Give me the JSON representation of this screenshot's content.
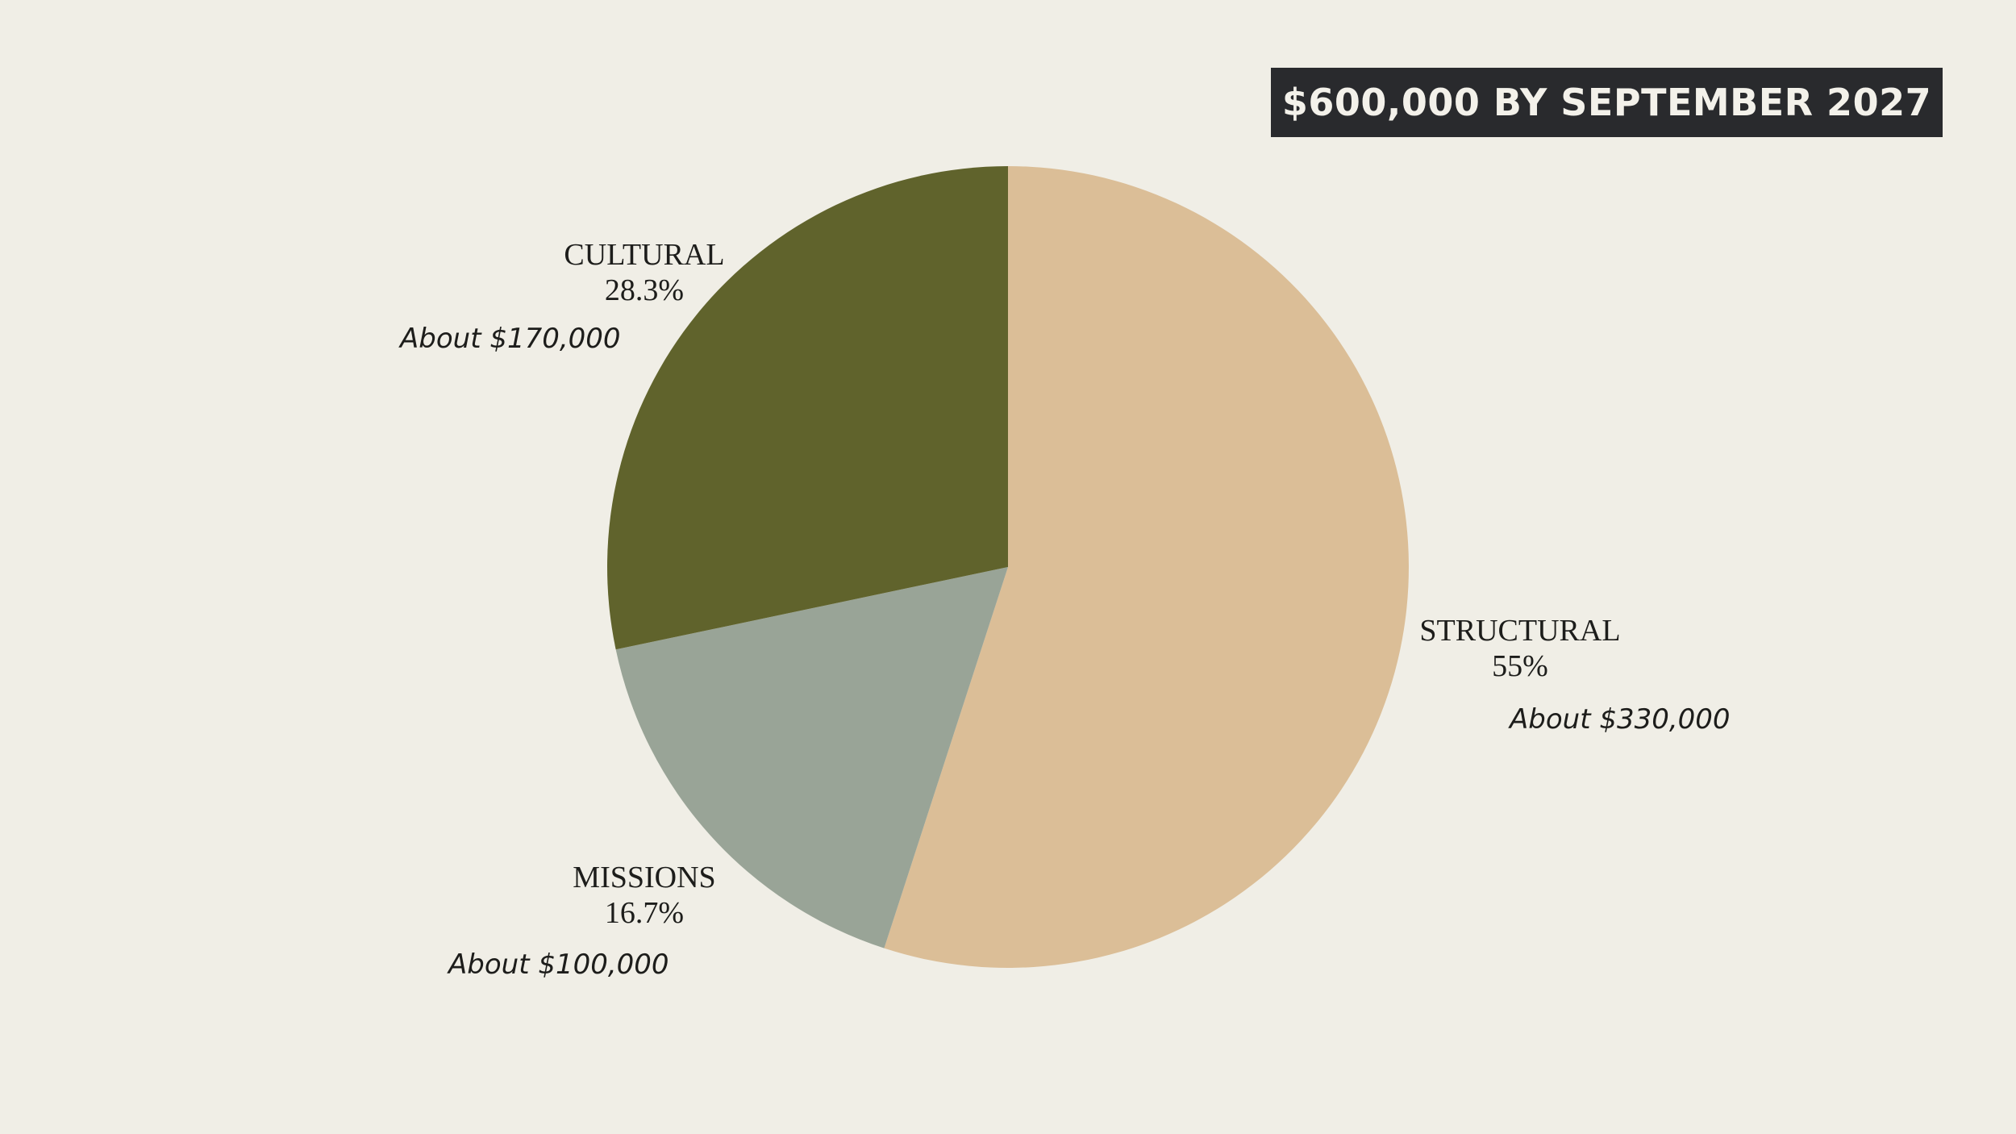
{
  "chart_data": {
    "type": "pie",
    "title": "$600,000 BY SEPTEMBER 2027",
    "slices": [
      {
        "name": "STRUCTURAL",
        "percent_label": "55%",
        "value": 55,
        "amount_label": "About $330,000",
        "color": "#dbbe97"
      },
      {
        "name": "MISSIONS",
        "percent_label": "16.7%",
        "value": 16.7,
        "amount_label": "About $100,000",
        "color": "#99a497"
      },
      {
        "name": "CULTURAL",
        "percent_label": "28.3%",
        "value": 28.3,
        "amount_label": "About $170,000",
        "color": "#60632c"
      }
    ],
    "start_angle": "top",
    "direction": "clockwise",
    "background": "#f0eee6"
  }
}
